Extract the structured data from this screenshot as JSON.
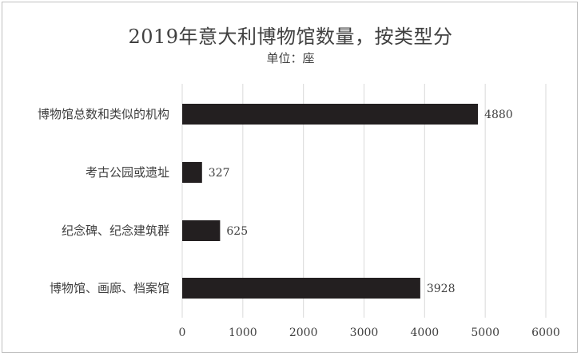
{
  "chart_data": {
    "type": "bar",
    "orientation": "horizontal",
    "title": "2019年意大利博物馆数量，按类型分",
    "subtitle": "单位：座",
    "categories": [
      "博物馆总数和类似的机构",
      "考古公园或遗址",
      "纪念碑、纪念建筑群",
      "博物馆、画廊、档案馆"
    ],
    "values": [
      4880,
      327,
      625,
      3928
    ],
    "xlim": [
      0,
      6000
    ],
    "xticks": [
      "0",
      "1000",
      "2000",
      "3000",
      "4000",
      "5000",
      "6000"
    ],
    "grid": true,
    "legend": "none",
    "bar_color": "#231f20"
  }
}
